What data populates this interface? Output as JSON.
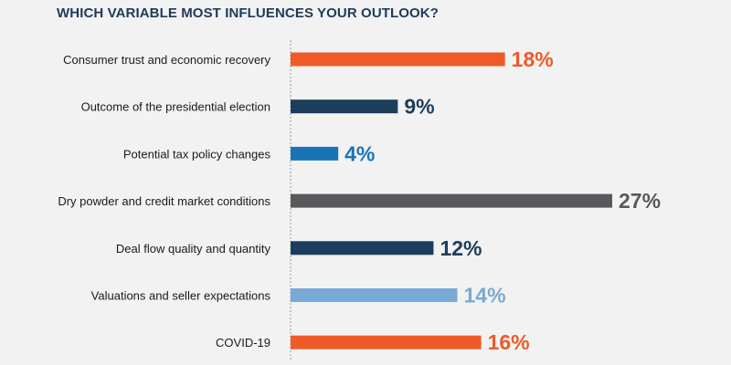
{
  "title": "WHICH VARIABLE MOST INFLUENCES YOUR OUTLOOK?",
  "chart_data": {
    "type": "bar",
    "orientation": "horizontal",
    "title": "WHICH VARIABLE MOST INFLUENCES YOUR OUTLOOK?",
    "categories": [
      "Consumer trust and economic recovery",
      "Outcome of the presidential election",
      "Potential tax policy changes",
      "Dry powder and credit market conditions",
      "Deal flow quality and quantity",
      "Valuations and seller expectations",
      "COVID-19"
    ],
    "values": [
      18,
      9,
      4,
      27,
      12,
      14,
      16
    ],
    "value_labels": [
      "18%",
      "9%",
      "4%",
      "27%",
      "12%",
      "14%",
      "16%"
    ],
    "colors": [
      "#f05a28",
      "#1d3d5c",
      "#1a73b5",
      "#58595b",
      "#1d3d5c",
      "#7aa9d4",
      "#f05a28"
    ],
    "unit": "%",
    "xlim": [
      0,
      27
    ],
    "grid": false,
    "legend": "none"
  }
}
